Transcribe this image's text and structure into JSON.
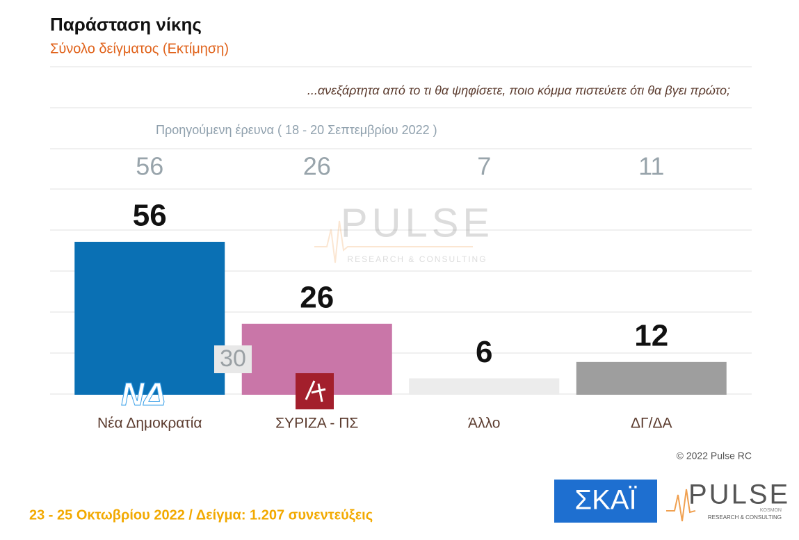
{
  "chart_data": {
    "type": "bar",
    "title": "Παράσταση νίκης",
    "subtitle": "Σύνολο δείγματος   (Εκτίμηση)",
    "question": "...ανεξάρτητα από το τι θα ψηφίσετε, ποιο κόμμα πιστεύετε ότι θα βγει πρώτο;",
    "previous_label": "Προηγούμενη έρευνα  ( 18 - 20 Σεπτεμβρίου  2022 )",
    "categories": [
      "Νέα Δημοκρατία",
      "ΣΥΡΙΖΑ - ΠΣ",
      "Άλλο",
      "ΔΓ/ΔΑ"
    ],
    "values": [
      56,
      26,
      6,
      12
    ],
    "previous_values": [
      56,
      26,
      7,
      11
    ],
    "colors": [
      "#0a70b4",
      "#c976a8",
      "#ececec",
      "#9e9e9e"
    ],
    "lead": 30,
    "copyright": "© 2022 Pulse RC",
    "footer": "23 - 25  Οκτωβρίου  2022  /  Δείγμα:  1.207 συνεντεύξεις",
    "logos": {
      "nd": "ΝΔ",
      "skai": "ΣΚΑΪ",
      "pulse": "PULSE",
      "pulse_sub": "RESEARCH & CONSULTING",
      "kosmon": "KOSMON"
    }
  }
}
